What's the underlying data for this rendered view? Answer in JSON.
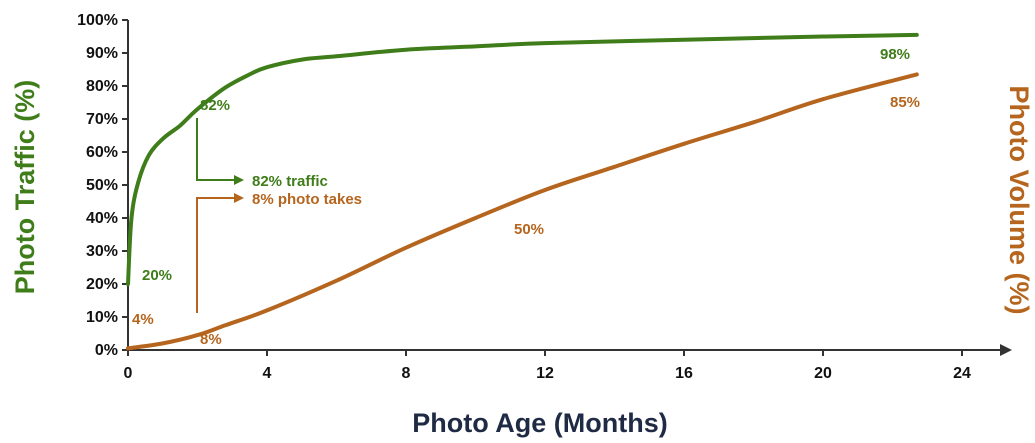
{
  "chart_data": {
    "type": "line",
    "xlabel": "Photo Age (Months)",
    "ylabel": "Photo Traffic (%)",
    "ylabel_right": "Photo Volume (%)",
    "xlim": [
      0,
      24
    ],
    "ylim": [
      0,
      100
    ],
    "x_ticks": [
      "0",
      "4",
      "8",
      "12",
      "16",
      "20",
      "24"
    ],
    "y_ticks": [
      "0%",
      "10%",
      "20%",
      "30%",
      "40%",
      "50%",
      "60%",
      "70%",
      "80%",
      "90%",
      "100%"
    ],
    "grid": false,
    "colors": {
      "traffic": "#3f7d1a",
      "volume": "#b5651d"
    },
    "series": [
      {
        "key": "traffic",
        "x": [
          0,
          0.1,
          0.3,
          0.6,
          1,
          1.5,
          2,
          2.8,
          3.5,
          4,
          5,
          6,
          8,
          10,
          12,
          16,
          20,
          22.7
        ],
        "y": [
          20,
          40,
          51,
          59,
          64,
          68,
          73,
          79.5,
          83.5,
          85.7,
          88,
          89,
          91,
          92,
          93,
          94,
          95,
          95.5
        ]
      },
      {
        "key": "volume",
        "x": [
          0,
          1,
          2,
          2.8,
          4,
          6,
          8,
          10,
          12,
          14,
          16,
          18,
          20,
          22.7
        ],
        "y": [
          0.5,
          2,
          4.5,
          7.5,
          12,
          21,
          31,
          40,
          48.5,
          55.5,
          62.5,
          69,
          76,
          83.5
        ]
      }
    ],
    "annotations": [
      {
        "text": "82%",
        "color": "traffic"
      },
      {
        "text": "20%",
        "color": "traffic"
      },
      {
        "text": "98%",
        "color": "traffic"
      },
      {
        "text": "4%",
        "color": "volume"
      },
      {
        "text": "8%",
        "color": "volume"
      },
      {
        "text": "50%",
        "color": "volume"
      },
      {
        "text": "85%",
        "color": "volume"
      }
    ],
    "callouts": [
      {
        "text": "82% traffic",
        "color": "traffic"
      },
      {
        "text": "8% photo takes",
        "color": "volume"
      }
    ]
  }
}
